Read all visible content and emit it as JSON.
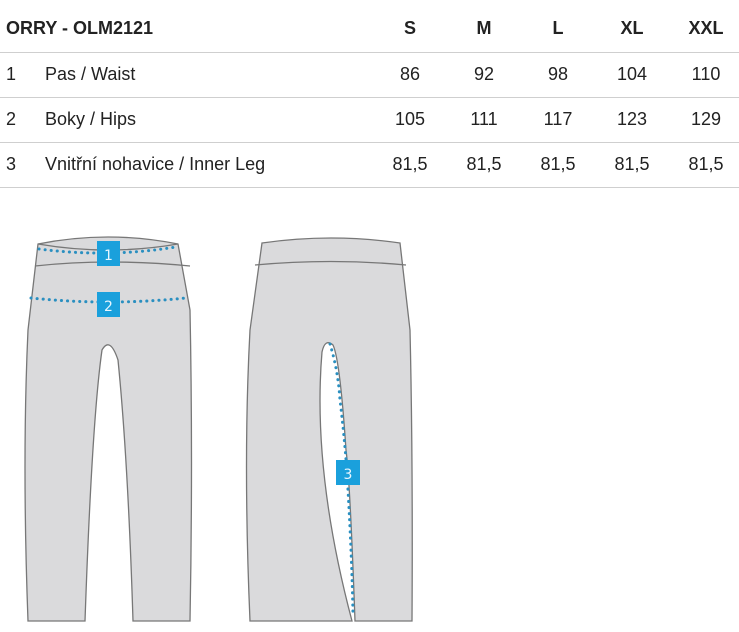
{
  "table": {
    "title": "ORRY - OLM2121",
    "sizes": [
      "S",
      "M",
      "L",
      "XL",
      "XXL"
    ],
    "rows": [
      {
        "num": "1",
        "label": "Pas / Waist",
        "values": [
          "86",
          "92",
          "98",
          "104",
          "110"
        ]
      },
      {
        "num": "2",
        "label": "Boky / Hips",
        "values": [
          "105",
          "111",
          "117",
          "123",
          "129"
        ]
      },
      {
        "num": "3",
        "label": "Vnitřní nohavice / Inner Leg",
        "values": [
          "81,5",
          "81,5",
          "81,5",
          "81,5",
          "81,5"
        ]
      }
    ]
  },
  "diagram": {
    "markers": [
      "1",
      "2",
      "3"
    ],
    "colors": {
      "garment": "#dadadc",
      "outline": "#777777",
      "dots": "#2a8fc0",
      "marker": "#1aa0dc"
    }
  }
}
